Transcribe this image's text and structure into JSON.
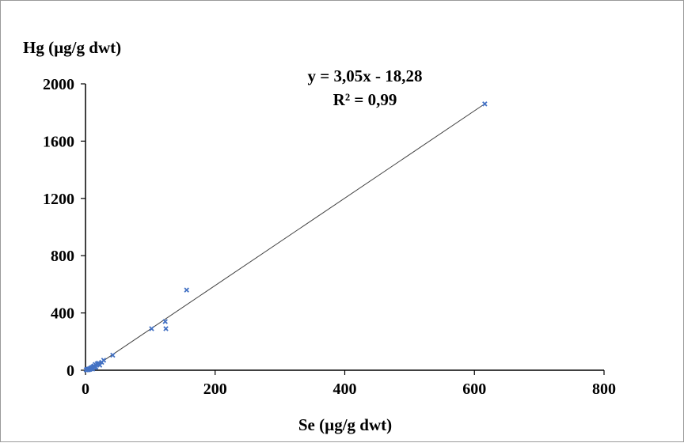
{
  "chart_data": {
    "type": "scatter",
    "title": "",
    "xlabel": "Se (µg/g dwt)",
    "ylabel": "Hg (µg/g dwt)",
    "xlim": [
      0,
      800
    ],
    "ylim": [
      0,
      2000
    ],
    "x_ticks": [
      "0",
      "200",
      "400",
      "600",
      "800"
    ],
    "y_ticks": [
      "0",
      "400",
      "800",
      "1200",
      "1600",
      "2000"
    ],
    "grid": false,
    "legend": "none",
    "marker_color": "#4472c4",
    "trendline": {
      "slope": 3.05,
      "intercept": -18.28,
      "equation": "y = 3,05x - 18,28",
      "r2": "R² = 0,99"
    },
    "points": [
      {
        "x": 1,
        "y": 3
      },
      {
        "x": 2,
        "y": 5
      },
      {
        "x": 3,
        "y": 2
      },
      {
        "x": 4,
        "y": 8
      },
      {
        "x": 5,
        "y": 4
      },
      {
        "x": 6,
        "y": 10
      },
      {
        "x": 7,
        "y": 6
      },
      {
        "x": 8,
        "y": 15
      },
      {
        "x": 9,
        "y": 12
      },
      {
        "x": 10,
        "y": 20
      },
      {
        "x": 11,
        "y": 8
      },
      {
        "x": 12,
        "y": 25
      },
      {
        "x": 13,
        "y": 30
      },
      {
        "x": 14,
        "y": 18
      },
      {
        "x": 15,
        "y": 40
      },
      {
        "x": 16,
        "y": 22
      },
      {
        "x": 18,
        "y": 45
      },
      {
        "x": 20,
        "y": 50
      },
      {
        "x": 22,
        "y": 35
      },
      {
        "x": 25,
        "y": 55
      },
      {
        "x": 28,
        "y": 70
      },
      {
        "x": 42,
        "y": 105
      },
      {
        "x": 102,
        "y": 290
      },
      {
        "x": 123,
        "y": 340
      },
      {
        "x": 124,
        "y": 290
      },
      {
        "x": 156,
        "y": 560
      },
      {
        "x": 616,
        "y": 1860
      }
    ]
  }
}
